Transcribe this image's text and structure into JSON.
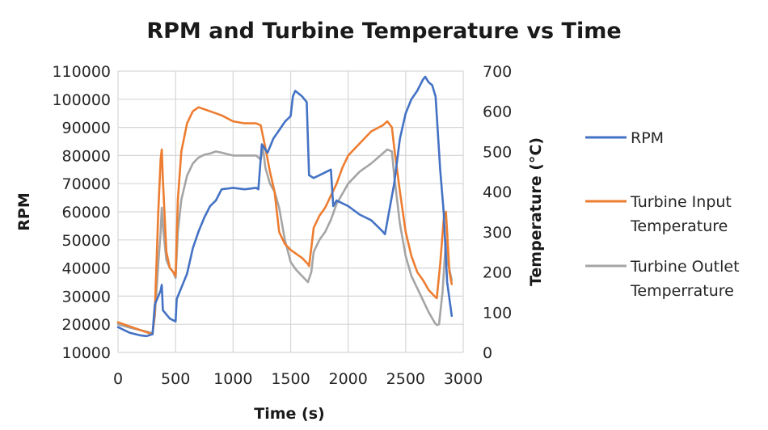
{
  "chart_data": {
    "type": "line",
    "title": "RPM and Turbine Temperature vs Time",
    "xlabel": "Time (s)",
    "ylabel": "RPM",
    "y2label": "Temperature (°C)",
    "xlim": [
      0,
      3000
    ],
    "ylim": [
      10000,
      110000
    ],
    "y2lim": [
      0,
      700
    ],
    "x_ticks": [
      "0",
      "500",
      "1000",
      "1500",
      "2000",
      "2500",
      "3000"
    ],
    "y_ticks": [
      "10000",
      "20000",
      "30000",
      "40000",
      "50000",
      "60000",
      "70000",
      "80000",
      "90000",
      "100000",
      "110000"
    ],
    "y2_ticks": [
      "0",
      "100",
      "200",
      "300",
      "400",
      "500",
      "600",
      "700"
    ],
    "grid": true,
    "legend_position": "right",
    "series": [
      {
        "name": "RPM",
        "axis": "left",
        "color": "#4472C4",
        "points": [
          [
            0,
            19000
          ],
          [
            50,
            18000
          ],
          [
            100,
            17000
          ],
          [
            150,
            16500
          ],
          [
            200,
            16000
          ],
          [
            250,
            15800
          ],
          [
            300,
            16500
          ],
          [
            320,
            27000
          ],
          [
            340,
            29000
          ],
          [
            370,
            32000
          ],
          [
            380,
            34000
          ],
          [
            390,
            25000
          ],
          [
            450,
            22000
          ],
          [
            500,
            21000
          ],
          [
            510,
            29000
          ],
          [
            550,
            33000
          ],
          [
            600,
            38000
          ],
          [
            650,
            47000
          ],
          [
            700,
            53000
          ],
          [
            750,
            58000
          ],
          [
            800,
            62000
          ],
          [
            850,
            64000
          ],
          [
            900,
            68000
          ],
          [
            1000,
            68500
          ],
          [
            1100,
            68000
          ],
          [
            1200,
            68500
          ],
          [
            1220,
            68000
          ],
          [
            1250,
            84000
          ],
          [
            1300,
            81000
          ],
          [
            1350,
            86000
          ],
          [
            1400,
            89000
          ],
          [
            1450,
            92000
          ],
          [
            1500,
            94000
          ],
          [
            1520,
            101000
          ],
          [
            1540,
            103000
          ],
          [
            1600,
            101000
          ],
          [
            1640,
            99000
          ],
          [
            1660,
            73000
          ],
          [
            1700,
            72000
          ],
          [
            1750,
            73000
          ],
          [
            1800,
            74000
          ],
          [
            1850,
            75000
          ],
          [
            1870,
            62000
          ],
          [
            1900,
            64000
          ],
          [
            1950,
            63000
          ],
          [
            2000,
            62000
          ],
          [
            2100,
            59000
          ],
          [
            2200,
            57000
          ],
          [
            2250,
            55000
          ],
          [
            2300,
            53000
          ],
          [
            2320,
            52000
          ],
          [
            2400,
            70000
          ],
          [
            2450,
            86000
          ],
          [
            2500,
            95000
          ],
          [
            2550,
            100000
          ],
          [
            2600,
            103000
          ],
          [
            2650,
            107000
          ],
          [
            2670,
            108000
          ],
          [
            2700,
            106000
          ],
          [
            2730,
            105000
          ],
          [
            2760,
            101000
          ],
          [
            2800,
            75000
          ],
          [
            2830,
            60000
          ],
          [
            2860,
            35000
          ],
          [
            2900,
            23000
          ]
        ]
      },
      {
        "name": "Turbine Input Temperature",
        "axis": "right",
        "color": "#ED7D31",
        "points": [
          [
            0,
            75
          ],
          [
            100,
            65
          ],
          [
            200,
            55
          ],
          [
            300,
            45
          ],
          [
            320,
            100
          ],
          [
            350,
            350
          ],
          [
            370,
            480
          ],
          [
            380,
            505
          ],
          [
            390,
            430
          ],
          [
            420,
            250
          ],
          [
            450,
            210
          ],
          [
            480,
            200
          ],
          [
            500,
            190
          ],
          [
            520,
            380
          ],
          [
            550,
            500
          ],
          [
            600,
            570
          ],
          [
            650,
            600
          ],
          [
            700,
            610
          ],
          [
            800,
            600
          ],
          [
            900,
            590
          ],
          [
            1000,
            575
          ],
          [
            1100,
            570
          ],
          [
            1200,
            570
          ],
          [
            1240,
            565
          ],
          [
            1280,
            510
          ],
          [
            1320,
            450
          ],
          [
            1360,
            400
          ],
          [
            1400,
            300
          ],
          [
            1450,
            270
          ],
          [
            1500,
            255
          ],
          [
            1550,
            245
          ],
          [
            1600,
            235
          ],
          [
            1650,
            220
          ],
          [
            1660,
            215
          ],
          [
            1680,
            260
          ],
          [
            1700,
            310
          ],
          [
            1750,
            340
          ],
          [
            1800,
            360
          ],
          [
            1850,
            390
          ],
          [
            1900,
            420
          ],
          [
            1950,
            460
          ],
          [
            2000,
            490
          ],
          [
            2100,
            520
          ],
          [
            2200,
            550
          ],
          [
            2300,
            565
          ],
          [
            2340,
            575
          ],
          [
            2380,
            560
          ],
          [
            2400,
            510
          ],
          [
            2450,
            400
          ],
          [
            2500,
            300
          ],
          [
            2550,
            240
          ],
          [
            2600,
            200
          ],
          [
            2650,
            180
          ],
          [
            2700,
            155
          ],
          [
            2750,
            140
          ],
          [
            2770,
            135
          ],
          [
            2800,
            220
          ],
          [
            2830,
            330
          ],
          [
            2850,
            350
          ],
          [
            2860,
            300
          ],
          [
            2880,
            200
          ],
          [
            2900,
            170
          ]
        ]
      },
      {
        "name": "Turbine Outlet Temperrature",
        "axis": "right",
        "color": "#A5A5A5",
        "points": [
          [
            0,
            70
          ],
          [
            100,
            62
          ],
          [
            200,
            55
          ],
          [
            300,
            48
          ],
          [
            320,
            90
          ],
          [
            350,
            220
          ],
          [
            370,
            300
          ],
          [
            380,
            360
          ],
          [
            395,
            300
          ],
          [
            420,
            230
          ],
          [
            450,
            210
          ],
          [
            480,
            200
          ],
          [
            500,
            185
          ],
          [
            520,
            300
          ],
          [
            550,
            380
          ],
          [
            600,
            440
          ],
          [
            650,
            470
          ],
          [
            700,
            485
          ],
          [
            750,
            492
          ],
          [
            800,
            495
          ],
          [
            850,
            500
          ],
          [
            900,
            497
          ],
          [
            1000,
            490
          ],
          [
            1100,
            490
          ],
          [
            1200,
            490
          ],
          [
            1240,
            480
          ],
          [
            1260,
            510
          ],
          [
            1280,
            460
          ],
          [
            1320,
            420
          ],
          [
            1360,
            400
          ],
          [
            1400,
            360
          ],
          [
            1450,
            280
          ],
          [
            1500,
            225
          ],
          [
            1550,
            205
          ],
          [
            1600,
            190
          ],
          [
            1650,
            175
          ],
          [
            1680,
            200
          ],
          [
            1700,
            250
          ],
          [
            1750,
            280
          ],
          [
            1800,
            300
          ],
          [
            1850,
            330
          ],
          [
            1900,
            370
          ],
          [
            1950,
            395
          ],
          [
            2000,
            420
          ],
          [
            2100,
            450
          ],
          [
            2200,
            470
          ],
          [
            2300,
            495
          ],
          [
            2340,
            505
          ],
          [
            2380,
            500
          ],
          [
            2400,
            440
          ],
          [
            2450,
            320
          ],
          [
            2500,
            240
          ],
          [
            2550,
            190
          ],
          [
            2600,
            160
          ],
          [
            2650,
            130
          ],
          [
            2700,
            100
          ],
          [
            2750,
            75
          ],
          [
            2770,
            68
          ],
          [
            2790,
            70
          ],
          [
            2820,
            150
          ],
          [
            2850,
            280
          ],
          [
            2870,
            220
          ],
          [
            2900,
            180
          ]
        ]
      }
    ]
  }
}
